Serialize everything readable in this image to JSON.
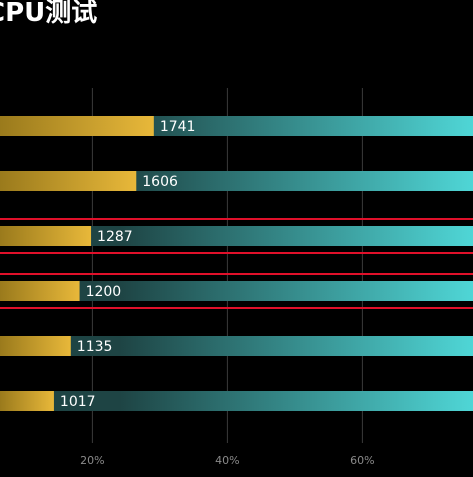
{
  "chart_data": {
    "type": "bar",
    "title": "CPU测试",
    "xlabel": "",
    "ylabel": "",
    "xlim": [
      0,
      80
    ],
    "x_ticks": [
      "20%",
      "40%",
      "60%"
    ],
    "x_tick_values": [
      20,
      40,
      60
    ],
    "grid": true,
    "values": [
      1741,
      1606,
      1287,
      1200,
      1135,
      1017
    ],
    "value_labels": [
      "1741",
      "1606",
      "1287",
      "1200",
      "1135",
      "1017"
    ],
    "progress_percent": [
      29.1,
      26.5,
      19.8,
      18.1,
      16.8,
      14.3
    ],
    "highlighted": [
      false,
      false,
      true,
      true,
      false,
      false
    ],
    "colors": {
      "background": "#000000",
      "bar_gold_start": "#9a7a1c",
      "bar_gold_end": "#e8b83a",
      "track_dark": "#1e4444",
      "track_light": "#4fd6d6",
      "highlight_line": "#e0102a",
      "grid_line": "#3a3a3a",
      "tick_text": "#8a8a8a",
      "value_text": "#ffffff"
    }
  }
}
